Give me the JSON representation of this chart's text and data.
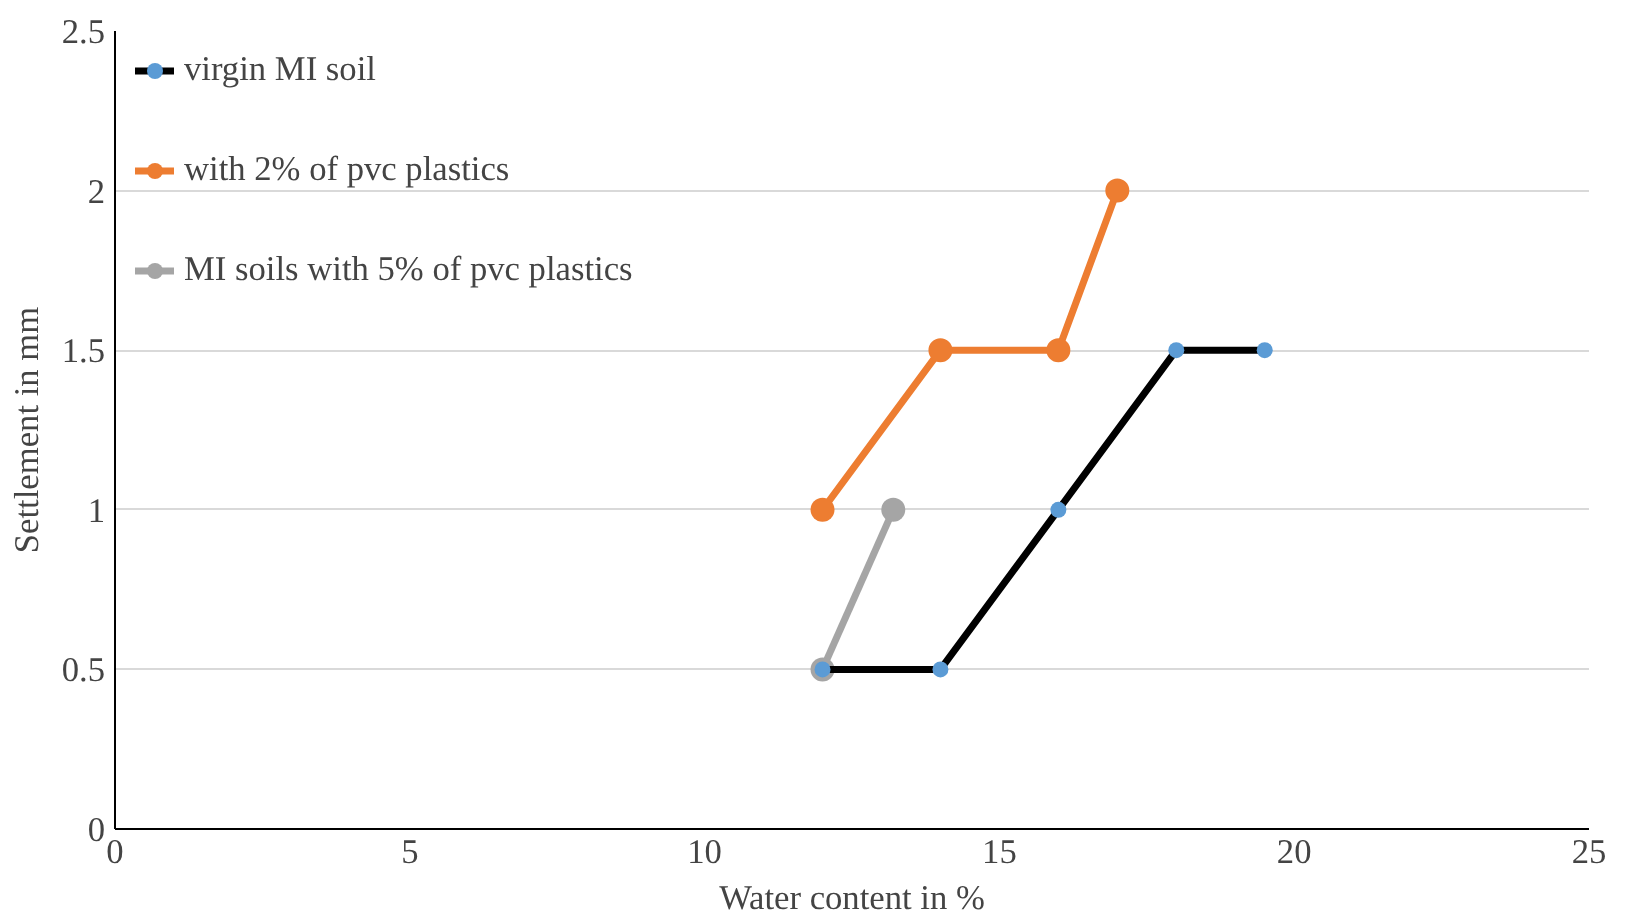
{
  "chart_data": {
    "type": "line",
    "xlabel": "Water content in %",
    "ylabel": "Settlement in mm",
    "xlim": [
      0,
      25
    ],
    "xticks": [
      0,
      5,
      10,
      15,
      20,
      25
    ],
    "ylim": [
      0,
      2.5
    ],
    "yticks": [
      0,
      0.5,
      1,
      1.5,
      2,
      2.5
    ],
    "grid": "y",
    "legend": "top left",
    "marker": "circle",
    "series": [
      {
        "name": "virgin MI soil",
        "color": "#000000",
        "x": [
          12,
          14,
          16,
          18,
          19.5
        ],
        "values": [
          0.5,
          0.5,
          1,
          1.5,
          1.5
        ]
      },
      {
        "name": "with 2% of pvc plastics",
        "color": "#ed7d31",
        "x": [
          12,
          14,
          16,
          17
        ],
        "values": [
          1,
          1.5,
          1.5,
          2
        ]
      },
      {
        "name": "MI soils with 5% of pvc plastics",
        "color": "#a5a5a5",
        "x": [
          12,
          13.2
        ],
        "values": [
          0.5,
          1
        ]
      }
    ]
  }
}
